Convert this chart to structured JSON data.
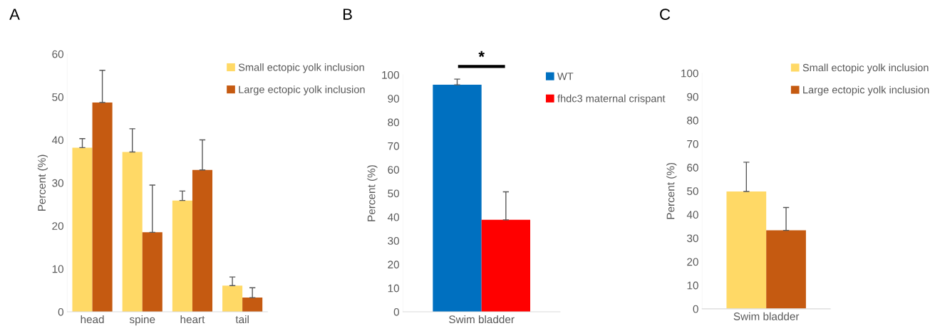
{
  "chart_data": [
    {
      "type": "bar",
      "title": "A",
      "ylabel": "Percent (%)",
      "categories": [
        "head",
        "spine",
        "heart",
        "tail"
      ],
      "ylim": [
        0,
        60
      ],
      "yticks": [
        0,
        10,
        20,
        30,
        40,
        50,
        60
      ],
      "legend": "top right",
      "grid": false,
      "series": [
        {
          "name": "Small ectopic yolk inclusion",
          "color": "#ffd966",
          "values": [
            38.2,
            37.2,
            25.9,
            6.1
          ],
          "errors": [
            [
              38.2,
              40.3
            ],
            [
              37.2,
              42.6
            ],
            [
              25.9,
              28.1
            ],
            [
              6.1,
              8.1
            ]
          ]
        },
        {
          "name": "Large ectopic yolk inclusion",
          "color": "#c55a11",
          "values": [
            48.7,
            18.5,
            33.0,
            3.3
          ],
          "errors": [
            [
              48.7,
              56.2
            ],
            [
              18.5,
              29.5
            ],
            [
              33.0,
              40.0
            ],
            [
              3.3,
              5.6
            ]
          ]
        }
      ]
    },
    {
      "type": "bar",
      "title": "B",
      "ylabel": "Percent (%)",
      "categories": [
        "Swim bladder"
      ],
      "ylim": [
        0,
        100
      ],
      "yticks": [
        0,
        10,
        20,
        30,
        40,
        50,
        60,
        70,
        80,
        90,
        100
      ],
      "legend": "top right",
      "grid": false,
      "annotations": [
        "*"
      ],
      "series": [
        {
          "name": "WT",
          "color": "#0070c0",
          "values": [
            95.8
          ],
          "errors": [
            [
              95.8,
              98.2
            ]
          ]
        },
        {
          "name": "fhdc3 maternal crispant",
          "color": "#ff0000",
          "values": [
            38.8
          ],
          "errors": [
            [
              38.8,
              50.6
            ]
          ]
        }
      ]
    },
    {
      "type": "bar",
      "title": "C",
      "ylabel": "Percent (%)",
      "categories": [
        "Swim bladder"
      ],
      "ylim": [
        0,
        100
      ],
      "yticks": [
        0,
        10,
        20,
        30,
        40,
        50,
        60,
        70,
        80,
        90,
        100
      ],
      "legend": "top right",
      "grid": false,
      "series": [
        {
          "name": "Small ectopic yolk inclusion",
          "color": "#ffd966",
          "values": [
            49.8
          ],
          "errors": [
            [
              49.8,
              62.2
            ]
          ]
        },
        {
          "name": "Large ectopic yolk inclusion",
          "color": "#c55a11",
          "values": [
            33.3
          ],
          "errors": [
            [
              33.3,
              43.0
            ]
          ]
        }
      ]
    }
  ]
}
